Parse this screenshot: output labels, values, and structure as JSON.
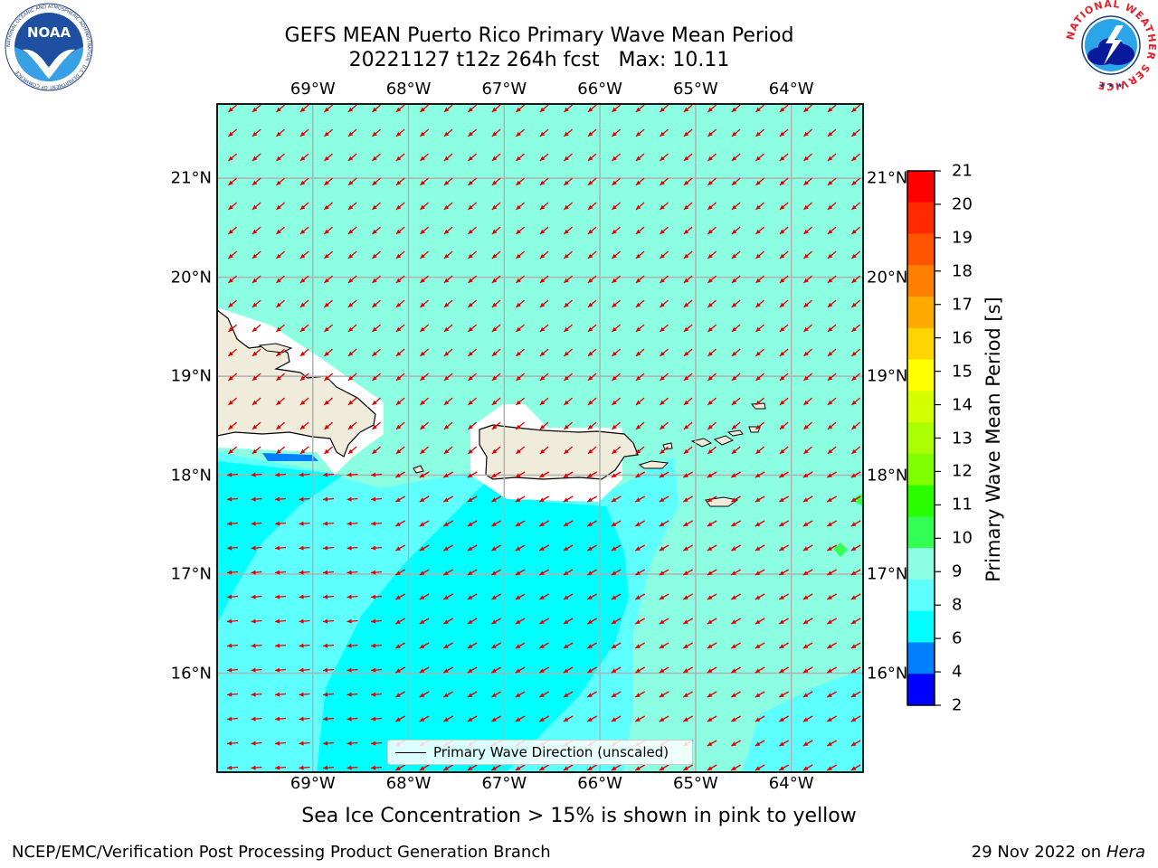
{
  "title": {
    "line1": "GEFS MEAN Puerto Rico Primary Wave Mean Period",
    "line2": "20221127 t12z 264h fcst   Max: 10.11"
  },
  "map": {
    "lon_range": [
      -70.0,
      -63.25
    ],
    "lat_range": [
      15.0,
      21.75
    ],
    "lon_ticks": [
      {
        "value": -69,
        "label": "69°W"
      },
      {
        "value": -68,
        "label": "68°W"
      },
      {
        "value": -67,
        "label": "67°W"
      },
      {
        "value": -66,
        "label": "66°W"
      },
      {
        "value": -65,
        "label": "65°W"
      },
      {
        "value": -64,
        "label": "64°W"
      }
    ],
    "lat_ticks": [
      {
        "value": 21,
        "label": "21°N"
      },
      {
        "value": 20,
        "label": "20°N"
      },
      {
        "value": 19,
        "label": "19°N"
      },
      {
        "value": 18,
        "label": "18°N"
      },
      {
        "value": 17,
        "label": "17°N"
      },
      {
        "value": 16,
        "label": "16°N"
      }
    ],
    "land_color": "#f0ecdc",
    "arrow_color": "#e00000",
    "ocean_colors": {
      "p10": "#8cffe2",
      "p9": "#5dffff",
      "p8": "#00ffff",
      "p6": "#0080ff"
    }
  },
  "legend": {
    "label": "Primary Wave Direction (unscaled)"
  },
  "colorbar": {
    "label": "Primary Wave Mean Period [s]",
    "ticks": [
      "21",
      "20",
      "19",
      "18",
      "17",
      "16",
      "15",
      "14",
      "13",
      "12",
      "11",
      "10",
      "9",
      "8",
      "6",
      "4",
      "2"
    ],
    "colors": [
      "#ff0000",
      "#ff2a00",
      "#ff5500",
      "#ff8000",
      "#ffaa00",
      "#ffd400",
      "#ffff00",
      "#d4ff00",
      "#aaff00",
      "#80ff00",
      "#2aff00",
      "#33ff55",
      "#8cffe2",
      "#5dffff",
      "#00ffff",
      "#0080ff",
      "#0000ff"
    ]
  },
  "note": "Sea Ice Concentration > 15% is shown in pink to yellow",
  "footer": {
    "left": "NCEP/EMC/Verification Post Processing Product Generation Branch",
    "right_date": "29 Nov 2022 on",
    "right_machine": "Hera"
  },
  "logos": {
    "noaa_text": "NOAA",
    "nws_text": "NATIONAL WEATHER SERVICE",
    "noaa_ring_text": "NATIONAL OCEANIC AND ATMOSPHERIC ADMINISTRATION · U.S. DEPARTMENT OF COMMERCE"
  }
}
